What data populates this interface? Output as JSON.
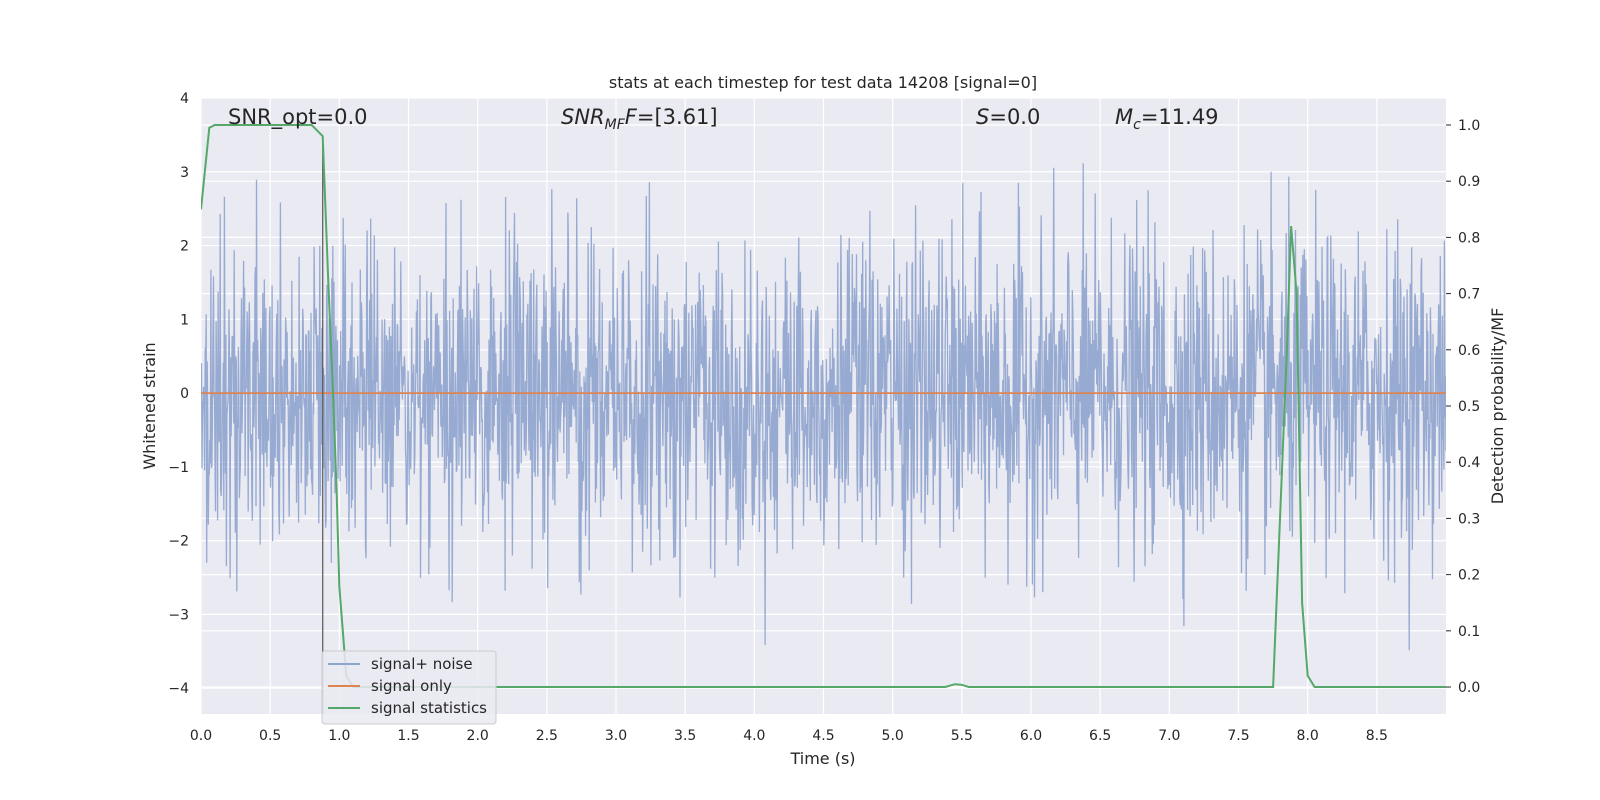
{
  "chart_data": {
    "type": "line",
    "title": "stats at each timestep for test data 14208 [signal=0]",
    "xlabel": "Time (s)",
    "ylabel": "Whitened strain",
    "y2label": "Detection probability/MF",
    "xlim": [
      0.0,
      9.0
    ],
    "ylim": [
      -4.35,
      4.0
    ],
    "y2lim": [
      -0.048,
      1.048
    ],
    "x_ticks": [
      "0.0",
      "0.5",
      "1.0",
      "1.5",
      "2.0",
      "2.5",
      "3.0",
      "3.5",
      "4.0",
      "4.5",
      "5.0",
      "5.5",
      "6.0",
      "6.5",
      "7.0",
      "7.5",
      "8.0",
      "8.5"
    ],
    "y_ticks": [
      "4",
      "3",
      "2",
      "1",
      "0",
      "−1",
      "−2",
      "−3",
      "−4"
    ],
    "y2_ticks": [
      "1.0",
      "0.9",
      "0.8",
      "0.7",
      "0.6",
      "0.5",
      "0.4",
      "0.3",
      "0.2",
      "0.1",
      "0.0"
    ],
    "grid": true,
    "legend_position": "lower-left",
    "annotations": {
      "snr_opt": "SNR_opt=0.0",
      "snr_mf_prefix": "SNR",
      "snr_mf_sub": "MF",
      "snr_mf_suffix": "=[3.61]",
      "s_var": "S",
      "s_suffix": "=0.0",
      "mc_var": "M",
      "mc_sub": "c",
      "mc_suffix": "=11.49"
    },
    "series": [
      {
        "name": "signal+ noise",
        "color": "#8ea3cd",
        "description_values": "dense Gaussian noise, mostly within ±1.5, peaks up to about ±3.5",
        "x_range": [
          0.0,
          9.0
        ]
      },
      {
        "name": "signal only",
        "color": "#dd8452",
        "x": [
          0.0,
          9.0
        ],
        "y": [
          0.0,
          0.0
        ]
      },
      {
        "name": "signal statistics",
        "color": "#55a868",
        "axis": "right",
        "x": [
          0.0,
          0.06,
          0.1,
          0.2,
          0.3,
          0.5,
          0.7,
          0.8,
          0.88,
          0.92,
          0.95,
          0.98,
          1.0,
          1.05,
          1.1,
          1.5,
          2.0,
          3.0,
          4.0,
          5.0,
          5.38,
          5.45,
          5.5,
          5.55,
          6.0,
          7.0,
          7.75,
          7.8,
          7.85,
          7.88,
          7.92,
          7.96,
          8.0,
          8.05,
          8.2,
          8.5,
          9.0
        ],
        "y": [
          0.85,
          0.995,
          1.0,
          1.0,
          1.0,
          1.0,
          1.0,
          1.0,
          0.98,
          0.72,
          0.55,
          0.35,
          0.18,
          0.02,
          0.0,
          0.0,
          0.0,
          0.0,
          0.0,
          0.0,
          0.0,
          0.005,
          0.004,
          0.0,
          0.0,
          0.0,
          0.0,
          0.3,
          0.6,
          0.82,
          0.7,
          0.15,
          0.02,
          0.0,
          0.0,
          0.0,
          0.0
        ]
      }
    ]
  },
  "colors": {
    "plot_bg": "#eaeaf2",
    "grid": "#ffffff",
    "text": "#262626"
  }
}
